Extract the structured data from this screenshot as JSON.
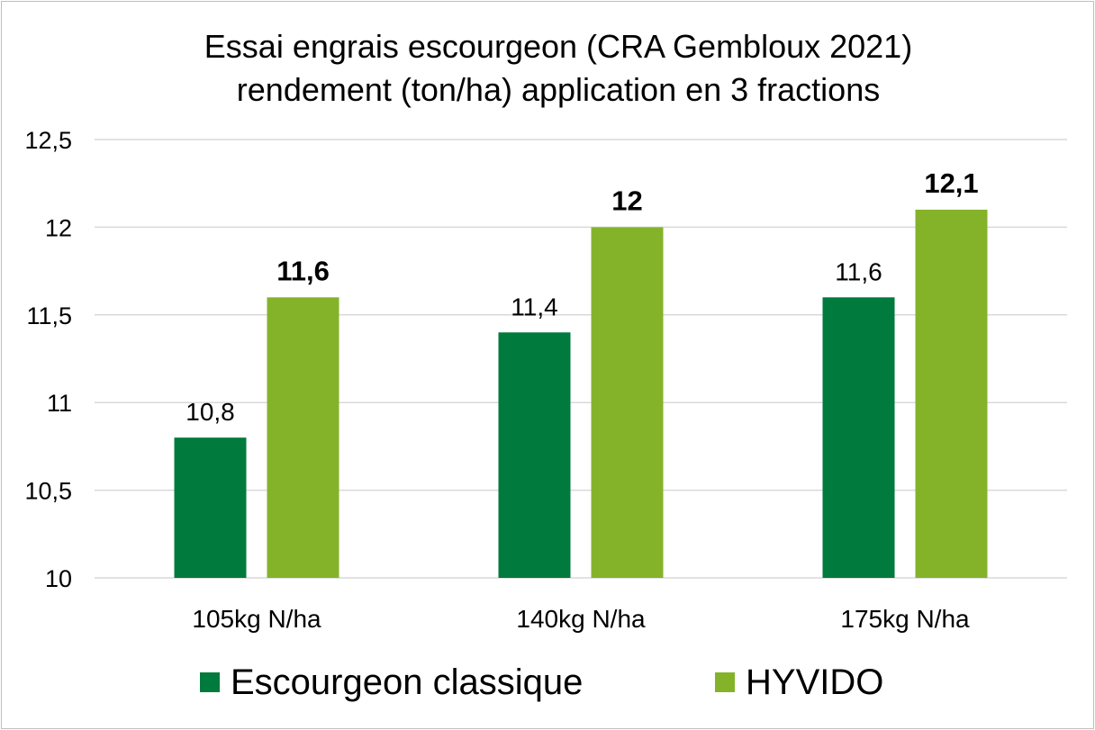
{
  "chart_data": {
    "type": "bar",
    "title": [
      "Essai engrais escourgeon (CRA Gembloux 2021)",
      "rendement (ton/ha)  application en 3 fractions"
    ],
    "categories": [
      "105kg N/ha",
      "140kg N/ha",
      "175kg N/ha"
    ],
    "series": [
      {
        "name": "Escourgeon classique",
        "values": [
          10.8,
          11.4,
          11.6
        ],
        "labels": [
          "10,8",
          "11,4",
          "11,6"
        ],
        "color": "#007a3d",
        "label_bold": false
      },
      {
        "name": "HYVIDO",
        "values": [
          11.6,
          12,
          12.1
        ],
        "labels": [
          "11,6",
          "12",
          "12,1"
        ],
        "color": "#84b32a",
        "label_bold": true
      }
    ],
    "ylim": [
      10,
      12.5
    ],
    "yticks": [
      10,
      10.5,
      11,
      11.5,
      12,
      12.5
    ],
    "ytick_labels": [
      "10",
      "10,5",
      "11",
      "11,5",
      "12",
      "12,5"
    ],
    "grid": true,
    "legend_position": "bottom",
    "gridline_color": "#d9d9d9"
  }
}
